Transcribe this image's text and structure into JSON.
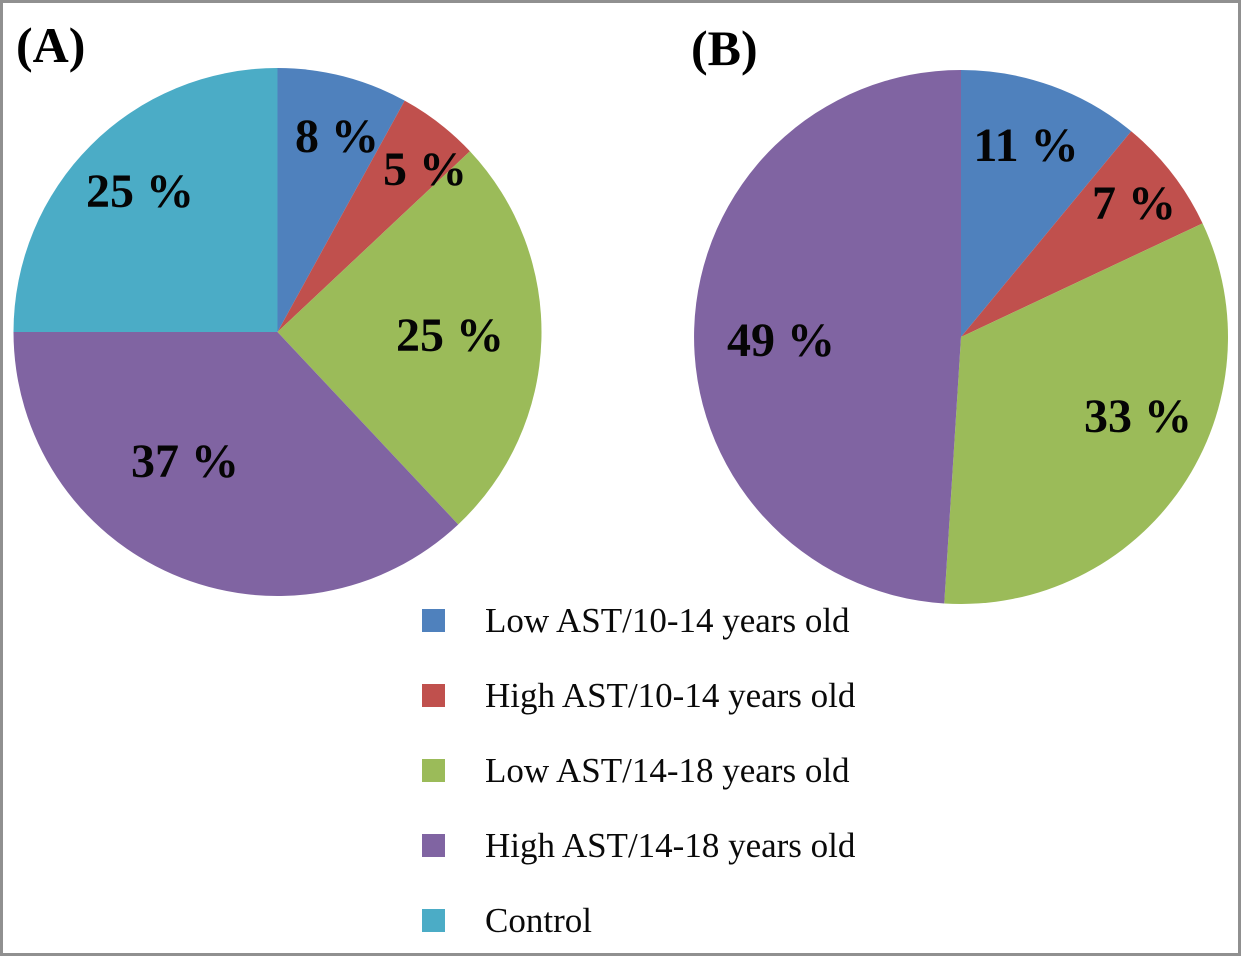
{
  "figure": {
    "panel_a_label": "(A)",
    "panel_b_label": "(B)"
  },
  "legend": {
    "position": "bottom-center",
    "items": [
      {
        "label": "Low AST/10-14 years old",
        "color": "#4F81BD"
      },
      {
        "label": "High AST/10-14 years old",
        "color": "#C0504D"
      },
      {
        "label": "Low AST/14-18 years old",
        "color": "#9BBB59"
      },
      {
        "label": "High AST/14-18 years old",
        "color": "#8064A2"
      },
      {
        "label": "Control",
        "color": "#4BACC6"
      }
    ]
  },
  "chart_data": [
    {
      "type": "pie",
      "panel": "(A)",
      "categories": [
        "Low AST/10-14 years old",
        "High AST/10-14 years old",
        "Low AST/14-18 years old",
        "High AST/14-18 years old",
        "Control"
      ],
      "values": [
        8,
        5,
        25,
        37,
        25
      ],
      "labels": [
        "8 %",
        "5 %",
        "25 %",
        "37 %",
        "25 %"
      ],
      "colors": [
        "#4F81BD",
        "#C0504D",
        "#9BBB59",
        "#8064A2",
        "#4BACC6"
      ],
      "unit": "%",
      "start_angle": "top",
      "direction": "clockwise",
      "legend_position": "shared-bottom"
    },
    {
      "type": "pie",
      "panel": "(B)",
      "categories": [
        "Low AST/10-14 years old",
        "High AST/10-14 years old",
        "Low AST/14-18 years old",
        "High AST/14-18 years old"
      ],
      "values": [
        11,
        7,
        33,
        49
      ],
      "labels": [
        "11 %",
        "7 %",
        "33 %",
        "49 %"
      ],
      "colors": [
        "#4F81BD",
        "#C0504D",
        "#9BBB59",
        "#8064A2"
      ],
      "unit": "%",
      "start_angle": "top",
      "direction": "clockwise",
      "legend_position": "shared-bottom"
    }
  ]
}
